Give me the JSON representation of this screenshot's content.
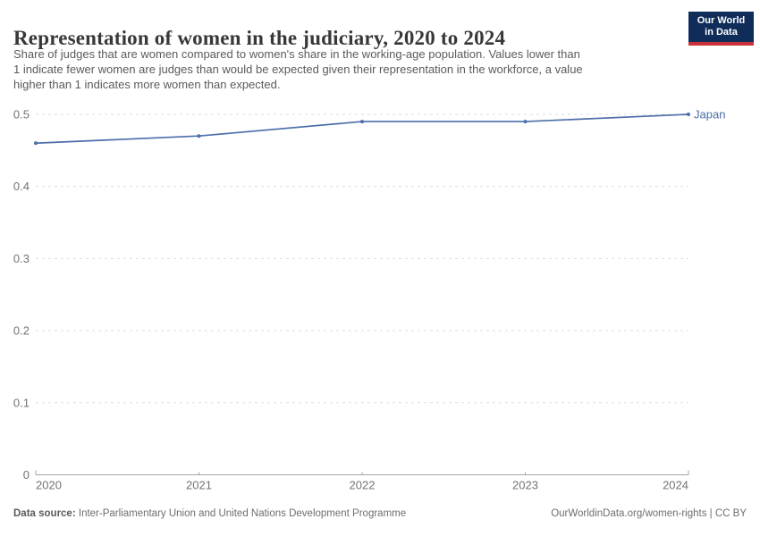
{
  "header": {
    "title": "Representation of women in the judiciary, 2020 to 2024",
    "subtitle_lines": [
      "Share of judges that are women compared to women's share in the working-age population. Values lower than",
      "1 indicate fewer women are judges than would be expected given their representation in the workforce, a value",
      "higher than 1 indicates more women than expected."
    ],
    "logo": {
      "line1": "Our World",
      "line2": "in Data",
      "bg_color": "#102d59",
      "stripe_color": "#c9303a"
    }
  },
  "chart_data": {
    "type": "line",
    "title": "Representation of women in the judiciary, 2020 to 2024",
    "x": [
      2020,
      2021,
      2022,
      2023,
      2024
    ],
    "series": [
      {
        "name": "Japan",
        "values": [
          0.46,
          0.47,
          0.49,
          0.49,
          0.5
        ],
        "color": "#4c6ea9"
      }
    ],
    "xlabel": "",
    "ylabel": "",
    "ylim": [
      0,
      0.5
    ],
    "yticks": [
      0,
      0.1,
      0.2,
      0.3,
      0.4,
      0.5
    ],
    "grid": "dashed-horizontal",
    "legend": "line-end-label"
  },
  "footer": {
    "source_label": "Data source:",
    "source_text": "Inter-Parliamentary Union and United Nations Development Programme",
    "rights_text": "OurWorldinData.org/women-rights | CC BY"
  }
}
